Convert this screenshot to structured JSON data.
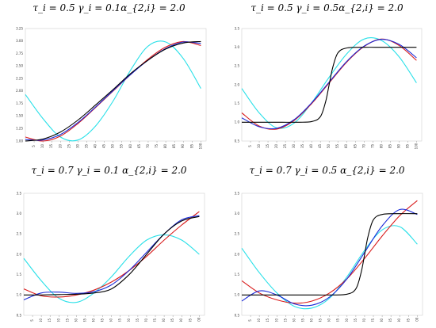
{
  "chart_data": [
    {
      "type": "line",
      "title": "τ_i = 0.5  γ_i = 0.1α_{2,i} = 2.0",
      "x_ticks": [
        5,
        10,
        15,
        20,
        25,
        30,
        35,
        40,
        45,
        50,
        55,
        60,
        65,
        70,
        75,
        80,
        85,
        90,
        95,
        100
      ],
      "y_ticks": [
        "1.00",
        "1.25",
        "1.50",
        "1.75",
        "2.00",
        "2.25",
        "2.50",
        "2.75",
        "3.00",
        "3.25"
      ],
      "xlim": [
        0,
        103
      ],
      "ylim": [
        1.0,
        3.25
      ],
      "grid": false,
      "series": [
        {
          "color": "#000000",
          "x": [
            0,
            10,
            20,
            30,
            40,
            50,
            60,
            70,
            80,
            90,
            100
          ],
          "y": [
            1.0,
            1.04,
            1.18,
            1.42,
            1.72,
            2.03,
            2.35,
            2.62,
            2.84,
            2.96,
            2.99
          ]
        },
        {
          "color": "#d81b1b",
          "x": [
            0,
            10,
            20,
            30,
            40,
            50,
            60,
            70,
            80,
            90,
            100
          ],
          "y": [
            1.08,
            1.0,
            1.1,
            1.35,
            1.67,
            2.0,
            2.33,
            2.64,
            2.88,
            2.99,
            2.91
          ]
        },
        {
          "color": "#1c2bd8",
          "x": [
            0,
            10,
            20,
            30,
            40,
            50,
            60,
            70,
            80,
            90,
            100
          ],
          "y": [
            1.03,
            1.02,
            1.13,
            1.37,
            1.68,
            2.01,
            2.33,
            2.62,
            2.85,
            2.98,
            2.95
          ]
        },
        {
          "color": "#29e0e8",
          "x": [
            0,
            10,
            20,
            30,
            40,
            50,
            60,
            70,
            80,
            90,
            100
          ],
          "y": [
            1.93,
            1.45,
            1.08,
            1.02,
            1.3,
            1.8,
            2.42,
            2.9,
            2.98,
            2.65,
            2.05
          ]
        }
      ]
    },
    {
      "type": "line",
      "title": "τ_i = 0.5  γ_i = 0.5α_{2,i} = 2.0",
      "x_ticks": [
        5,
        10,
        15,
        20,
        25,
        30,
        35,
        40,
        45,
        50,
        55,
        60,
        65,
        70,
        75,
        80,
        85,
        90,
        95,
        100
      ],
      "y_ticks": [
        "0.5",
        "1.0",
        "1.5",
        "2.0",
        "2.5",
        "3.0",
        "3.5"
      ],
      "xlim": [
        0,
        103
      ],
      "ylim": [
        0.5,
        3.5
      ],
      "grid": false,
      "series": [
        {
          "color": "#000000",
          "x": [
            0,
            10,
            20,
            30,
            40,
            45,
            48,
            50,
            52,
            55,
            60,
            70,
            80,
            90,
            100
          ],
          "y": [
            1.0,
            1.0,
            1.0,
            1.0,
            1.02,
            1.15,
            1.55,
            2.0,
            2.45,
            2.85,
            2.98,
            3.0,
            3.0,
            3.0,
            3.0
          ]
        },
        {
          "color": "#d81b1b",
          "x": [
            0,
            10,
            20,
            30,
            40,
            50,
            60,
            70,
            80,
            90,
            100
          ],
          "y": [
            1.25,
            0.9,
            0.82,
            1.05,
            1.5,
            2.05,
            2.6,
            3.02,
            3.22,
            3.05,
            2.65
          ]
        },
        {
          "color": "#1c2bd8",
          "x": [
            0,
            10,
            20,
            30,
            40,
            50,
            60,
            70,
            80,
            90,
            100
          ],
          "y": [
            1.12,
            0.88,
            0.84,
            1.07,
            1.52,
            2.07,
            2.62,
            3.03,
            3.21,
            3.08,
            2.72
          ]
        },
        {
          "color": "#29e0e8",
          "x": [
            0,
            10,
            20,
            30,
            40,
            50,
            60,
            70,
            80,
            90,
            100
          ],
          "y": [
            1.9,
            1.25,
            0.85,
            0.98,
            1.52,
            2.2,
            2.82,
            3.22,
            3.18,
            2.75,
            2.05
          ]
        }
      ]
    },
    {
      "type": "line",
      "title": "τ_i = 0.7  γ_i = 0.1  α_{2,i} = 2.0",
      "x_ticks": [
        5,
        10,
        15,
        20,
        25,
        30,
        35,
        40,
        45,
        50,
        55,
        60,
        65,
        70,
        75,
        80,
        85,
        90,
        95,
        100
      ],
      "y_ticks": [
        "0.5",
        "1.0",
        "1.5",
        "2.0",
        "2.5",
        "3.0",
        "3.5"
      ],
      "xlim": [
        0,
        103
      ],
      "ylim": [
        0.5,
        3.5
      ],
      "grid": false,
      "series": [
        {
          "color": "#000000",
          "x": [
            0,
            10,
            20,
            30,
            40,
            50,
            60,
            70,
            80,
            90,
            100
          ],
          "y": [
            1.0,
            1.0,
            1.01,
            1.02,
            1.05,
            1.15,
            1.5,
            2.0,
            2.5,
            2.82,
            2.93
          ]
        },
        {
          "color": "#d81b1b",
          "x": [
            0,
            10,
            20,
            30,
            40,
            50,
            60,
            70,
            80,
            90,
            100
          ],
          "y": [
            1.15,
            0.98,
            0.95,
            1.0,
            1.12,
            1.32,
            1.6,
            1.95,
            2.35,
            2.72,
            3.05
          ]
        },
        {
          "color": "#1c2bd8",
          "x": [
            0,
            10,
            20,
            30,
            40,
            50,
            60,
            70,
            80,
            90,
            100
          ],
          "y": [
            0.88,
            1.05,
            1.07,
            1.04,
            1.08,
            1.25,
            1.6,
            2.05,
            2.5,
            2.85,
            2.95
          ]
        },
        {
          "color": "#29e0e8",
          "x": [
            0,
            10,
            20,
            30,
            40,
            50,
            60,
            70,
            80,
            90,
            100
          ],
          "y": [
            1.9,
            1.35,
            0.92,
            0.82,
            1.05,
            1.45,
            1.95,
            2.35,
            2.48,
            2.35,
            2.0
          ]
        }
      ]
    },
    {
      "type": "line",
      "title": "τ_i = 0.7  γ_i = 0.5  α_{2,i} = 2.0",
      "x_ticks": [
        5,
        10,
        15,
        20,
        25,
        30,
        35,
        40,
        45,
        50,
        55,
        60,
        65,
        70,
        75,
        80,
        85,
        90,
        95,
        100
      ],
      "y_ticks": [
        "0.5",
        "1.0",
        "1.5",
        "2.0",
        "2.5",
        "3.0",
        "3.5"
      ],
      "xlim": [
        0,
        103
      ],
      "ylim": [
        0.5,
        3.5
      ],
      "grid": false,
      "series": [
        {
          "color": "#000000",
          "x": [
            0,
            10,
            20,
            30,
            40,
            50,
            60,
            65,
            68,
            70,
            72,
            75,
            80,
            90,
            100
          ],
          "y": [
            1.0,
            1.0,
            1.0,
            1.0,
            1.0,
            1.0,
            1.02,
            1.15,
            1.55,
            2.0,
            2.45,
            2.85,
            2.98,
            3.0,
            3.0
          ]
        },
        {
          "color": "#d81b1b",
          "x": [
            0,
            10,
            20,
            30,
            40,
            50,
            60,
            70,
            80,
            90,
            100
          ],
          "y": [
            1.35,
            1.05,
            0.88,
            0.8,
            0.85,
            1.05,
            1.4,
            1.9,
            2.45,
            2.95,
            3.32
          ]
        },
        {
          "color": "#1c2bd8",
          "x": [
            0,
            10,
            20,
            30,
            40,
            50,
            60,
            70,
            80,
            90,
            100
          ],
          "y": [
            0.85,
            1.1,
            1.0,
            0.78,
            0.75,
            0.95,
            1.4,
            2.05,
            2.7,
            3.1,
            2.98
          ]
        },
        {
          "color": "#29e0e8",
          "x": [
            0,
            10,
            20,
            30,
            40,
            50,
            60,
            70,
            80,
            90,
            100
          ],
          "y": [
            2.15,
            1.55,
            1.05,
            0.72,
            0.68,
            0.92,
            1.45,
            2.1,
            2.6,
            2.68,
            2.25
          ]
        }
      ]
    }
  ]
}
